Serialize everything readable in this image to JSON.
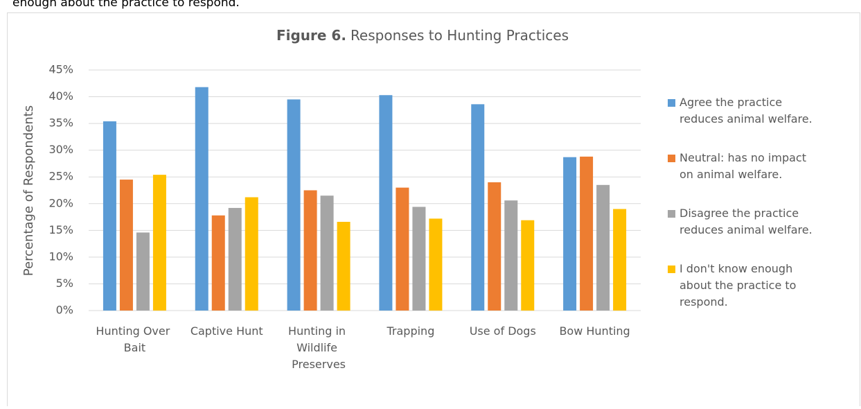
{
  "page_text": "enough about the practice to respond.",
  "chart_data": {
    "type": "bar",
    "title_prefix": "Figure 6.",
    "title": "Responses to Hunting Practices",
    "y_label": "Percentage of Respondents",
    "categories": [
      "Hunting Over Bait",
      "Captive Hunt",
      "Hunting in Wildlife Preserves",
      "Trapping",
      "Use of Dogs",
      "Bow Hunting"
    ],
    "series": [
      {
        "name": "Agree the practice reduces animal welfare.",
        "color": "#5b9bd5",
        "values": [
          35.4,
          41.8,
          39.5,
          40.3,
          38.6,
          28.7
        ]
      },
      {
        "name": "Neutral: has no impact on animal welfare.",
        "color": "#ed7d31",
        "values": [
          24.5,
          17.8,
          22.5,
          23.0,
          24.0,
          28.8
        ]
      },
      {
        "name": "Disagree the practice reduces animal welfare.",
        "color": "#a5a5a5",
        "values": [
          14.6,
          19.2,
          21.5,
          19.4,
          20.6,
          23.5
        ]
      },
      {
        "name": "I don't know enough about the practice to respond.",
        "color": "#ffc000",
        "values": [
          25.4,
          21.2,
          16.6,
          17.2,
          16.9,
          19.0
        ]
      }
    ],
    "ylim": [
      0,
      45
    ],
    "yticks": [
      {
        "value": 0,
        "label": "0%"
      },
      {
        "value": 5,
        "label": "5%"
      },
      {
        "value": 10,
        "label": "10%"
      },
      {
        "value": 15,
        "label": "15%"
      },
      {
        "value": 20,
        "label": "20%"
      },
      {
        "value": 25,
        "label": "25%"
      },
      {
        "value": 30,
        "label": "30%"
      },
      {
        "value": 35,
        "label": "35%"
      },
      {
        "value": 40,
        "label": "40%"
      },
      {
        "value": 45,
        "label": "45%"
      }
    ],
    "grid": true,
    "legend": "right"
  }
}
